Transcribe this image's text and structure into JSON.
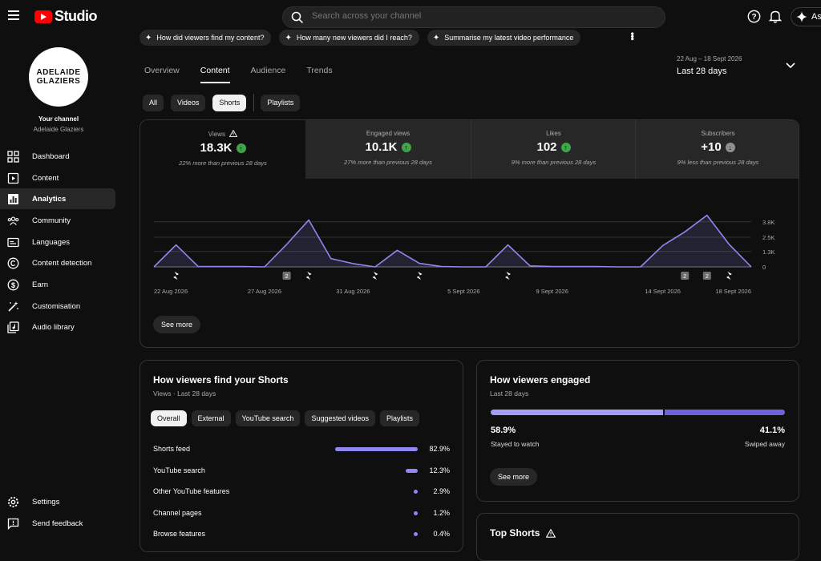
{
  "app": {
    "logo_text": "Studio"
  },
  "search": {
    "placeholder": "Search across your channel"
  },
  "header": {
    "ask_label": "As"
  },
  "channel": {
    "logo_line1": "ADELAIDE",
    "logo_line2": "GLAZIERS",
    "your_channel": "Your channel",
    "name": "Adelaide Glaziers"
  },
  "sidebar": {
    "items": [
      {
        "label": "Dashboard",
        "icon": "dashboard-icon"
      },
      {
        "label": "Content",
        "icon": "content-icon"
      },
      {
        "label": "Analytics",
        "icon": "analytics-icon",
        "active": true
      },
      {
        "label": "Community",
        "icon": "community-icon"
      },
      {
        "label": "Languages",
        "icon": "languages-icon"
      },
      {
        "label": "Content detection",
        "icon": "copyright-icon"
      },
      {
        "label": "Earn",
        "icon": "dollar-icon"
      },
      {
        "label": "Customisation",
        "icon": "magic-wand-icon"
      },
      {
        "label": "Audio library",
        "icon": "audio-library-icon"
      }
    ],
    "footer": [
      {
        "label": "Settings",
        "icon": "gear-icon"
      },
      {
        "label": "Send feedback",
        "icon": "feedback-icon"
      }
    ]
  },
  "suggestions": [
    "How did viewers find my content?",
    "How many new viewers did I reach?",
    "Summarise my latest video performance"
  ],
  "tabs": [
    "Overview",
    "Content",
    "Audience",
    "Trends"
  ],
  "date_range": {
    "range": "22 Aug – 18 Sept 2026",
    "label": "Last 28 days"
  },
  "filters": [
    "All",
    "Videos",
    "Shorts",
    "Playlists"
  ],
  "metrics": [
    {
      "label": "Views",
      "value": "18.3K",
      "trend": "up",
      "sub": "22% more than previous 28 days",
      "warning": true
    },
    {
      "label": "Engaged views",
      "value": "10.1K",
      "trend": "up",
      "sub": "27% more than previous 28 days"
    },
    {
      "label": "Likes",
      "value": "102",
      "trend": "up",
      "sub": "9% more than previous 28 days"
    },
    {
      "label": "Subscribers",
      "value": "+10",
      "trend": "down",
      "sub": "9% less than previous 28 days"
    }
  ],
  "chart_data": {
    "type": "area",
    "x": [
      "22 Aug 2026",
      "23 Aug",
      "24 Aug",
      "25 Aug",
      "26 Aug",
      "27 Aug 2026",
      "28 Aug",
      "29 Aug",
      "30 Aug",
      "31 Aug 2026",
      "1 Sept",
      "2 Sept",
      "3 Sept",
      "4 Sept",
      "5 Sept 2026",
      "6 Sept",
      "7 Sept",
      "8 Sept",
      "9 Sept 2026",
      "10 Sept",
      "11 Sept",
      "12 Sept",
      "13 Sept",
      "14 Sept 2026",
      "15 Sept",
      "16 Sept",
      "17 Sept",
      "18 Sept 2026"
    ],
    "values": [
      0,
      1850,
      30,
      30,
      30,
      0,
      1900,
      3950,
      700,
      280,
      0,
      1400,
      300,
      30,
      0,
      0,
      1850,
      80,
      30,
      30,
      30,
      0,
      0,
      1800,
      2950,
      4350,
      1900,
      0
    ],
    "x_tick_labels": [
      "22 Aug 2026",
      "27 Aug 2026",
      "31 Aug 2026",
      "5 Sept 2026",
      "9 Sept 2026",
      "14 Sept 2026",
      "18 Sept 2026"
    ],
    "y_tick_labels": [
      "3.8K",
      "2.5K",
      "1.3K",
      "0"
    ],
    "ylim": [
      0,
      5000
    ],
    "line_color": "#8e88f0",
    "grid": true,
    "markers": [
      {
        "day": 1,
        "kind": "short"
      },
      {
        "day": 6,
        "kind": "count",
        "text": "2"
      },
      {
        "day": 7,
        "kind": "short"
      },
      {
        "day": 10,
        "kind": "short"
      },
      {
        "day": 12,
        "kind": "short"
      },
      {
        "day": 16,
        "kind": "short"
      },
      {
        "day": 24,
        "kind": "count",
        "text": "2"
      },
      {
        "day": 25,
        "kind": "count",
        "text": "2"
      },
      {
        "day": 26,
        "kind": "short"
      }
    ]
  },
  "metrics_see_more": "See more",
  "find": {
    "title": "How viewers find your Shorts",
    "subtitle": "Views · Last 28 days",
    "chips": [
      "Overall",
      "External",
      "YouTube search",
      "Suggested videos",
      "Playlists"
    ],
    "sources": [
      {
        "label": "Shorts feed",
        "pct": "82.9%",
        "value": 82.9
      },
      {
        "label": "YouTube search",
        "pct": "12.3%",
        "value": 12.3
      },
      {
        "label": "Other YouTube features",
        "pct": "2.9%",
        "value": 2.9
      },
      {
        "label": "Channel pages",
        "pct": "1.2%",
        "value": 1.2
      },
      {
        "label": "Browse features",
        "pct": "0.4%",
        "value": 0.4
      }
    ]
  },
  "engaged": {
    "title": "How viewers engaged",
    "subtitle": "Last 28 days",
    "stayed_pct": "58.9%",
    "stayed_label": "Stayed to watch",
    "stayed_value": 58.9,
    "swiped_pct": "41.1%",
    "swiped_label": "Swiped away",
    "see_more": "See more"
  },
  "top_shorts": {
    "title": "Top Shorts"
  }
}
